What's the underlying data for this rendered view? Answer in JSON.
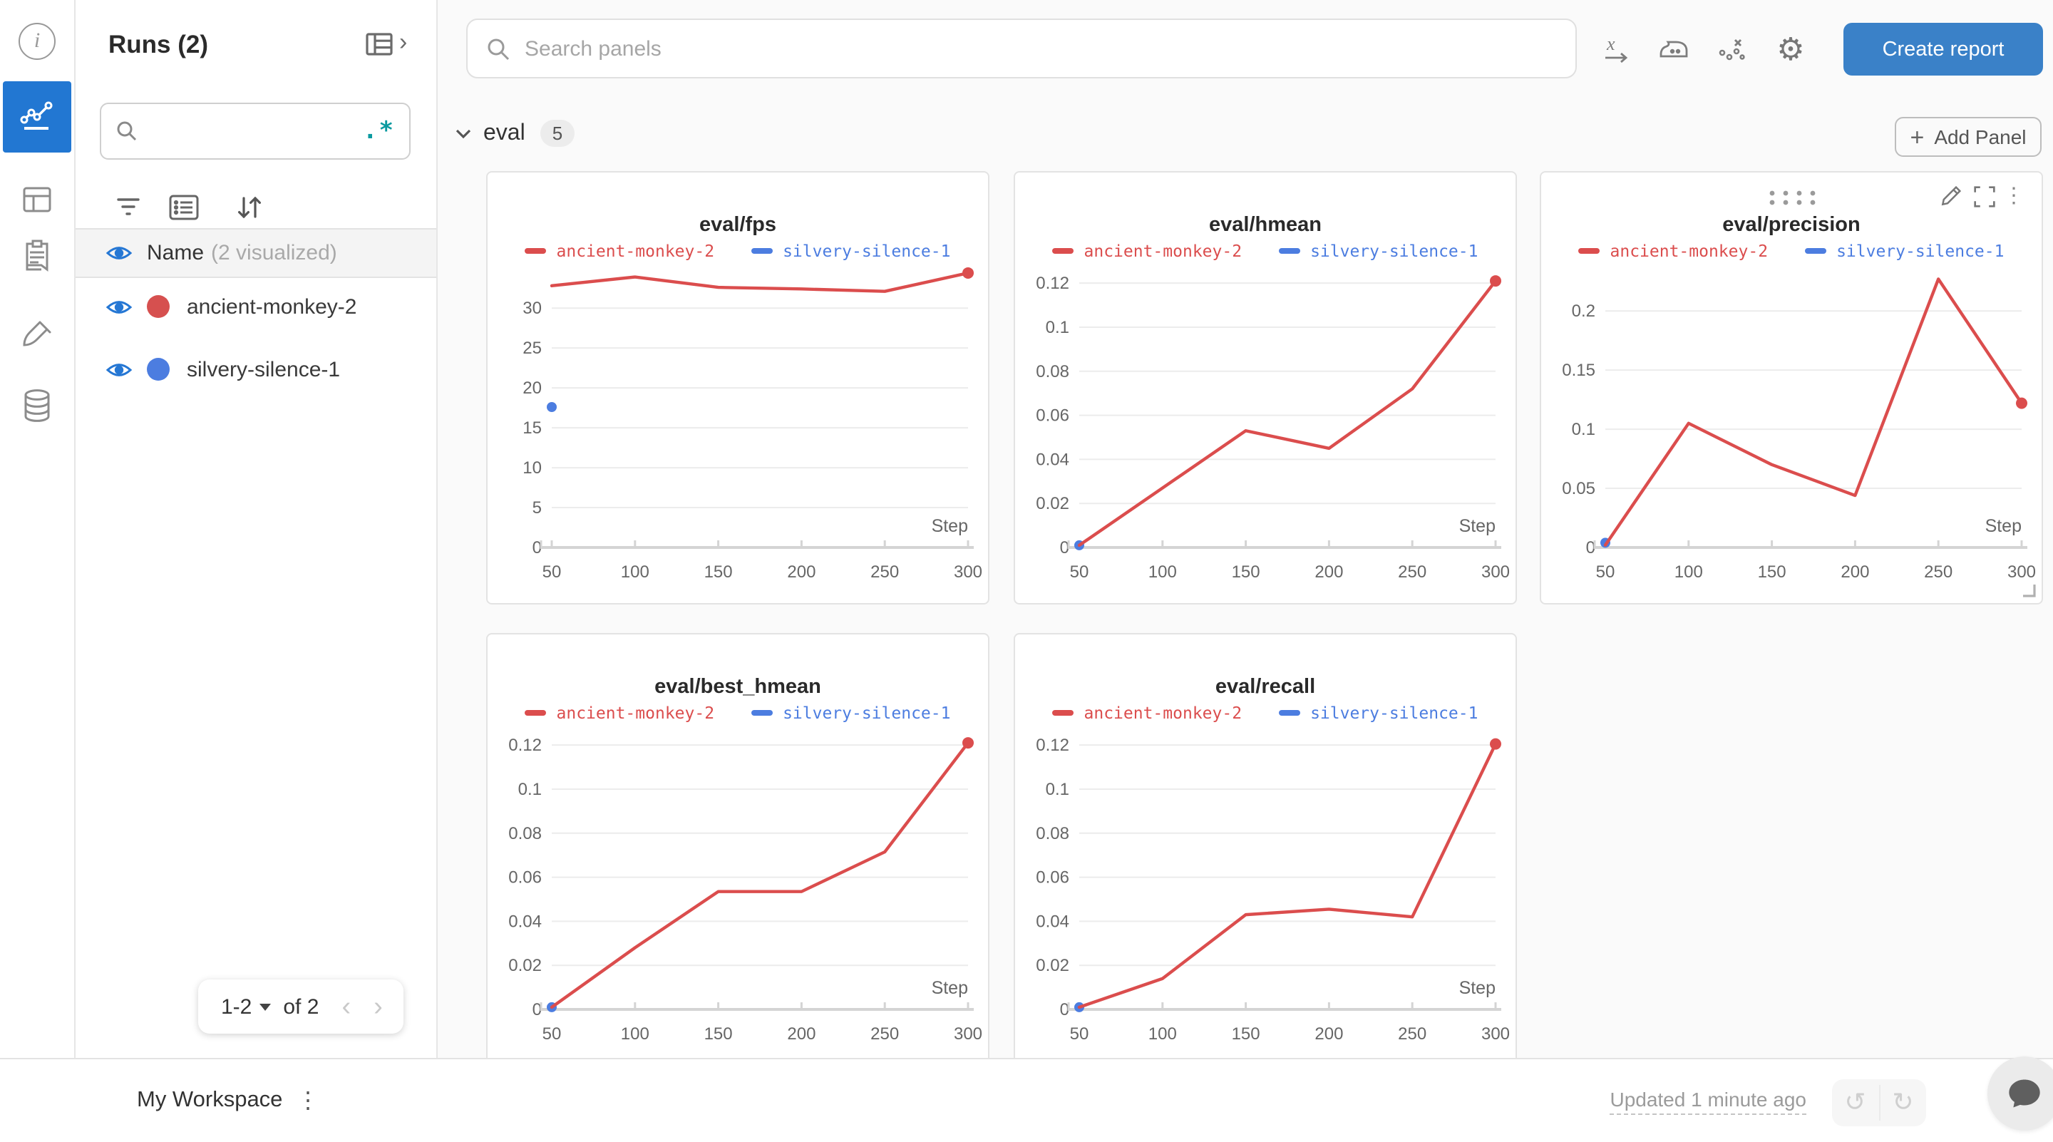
{
  "icons": {
    "gear": "⚙",
    "undo": "↺",
    "redo": "↻",
    "kebab": "⋮",
    "chevron_right": "›",
    "chevron_left": "‹",
    "chevron_right2": "›",
    "plus": "+"
  },
  "rail": {
    "items": [
      {
        "name": "info"
      },
      {
        "name": "workspace-charts",
        "selected": true
      },
      {
        "name": "panels-table"
      },
      {
        "name": "logs-clipboard"
      },
      {
        "name": "sweeps-brush"
      },
      {
        "name": "artifacts-database"
      }
    ]
  },
  "runs_panel": {
    "title": "Runs (2)",
    "search_value": "",
    "regex_icon": ".*",
    "header": {
      "label": "Name",
      "suffix": "(2 visualized)"
    },
    "runs": [
      {
        "name": "ancient-monkey-2",
        "color": "#d6504f"
      },
      {
        "name": "silvery-silence-1",
        "color": "#4c7de0"
      }
    ],
    "pagination": {
      "range": "1-2",
      "of": "of 2"
    }
  },
  "topbar": {
    "search_placeholder": "Search panels",
    "create_report": "Create report"
  },
  "section": {
    "label": "eval",
    "count": "5",
    "add_panel": "Add Panel"
  },
  "bottombar": {
    "workspace": "My Workspace",
    "updated": "Updated 1 minute ago"
  },
  "colors": {
    "accent_blue": "#3a81c8",
    "selected_tile_blue": "#2277d2",
    "eye_blue": "#2577d4",
    "run_red": "#d6504f",
    "run_blue": "#4c7de0",
    "series_red": "#db4d4d",
    "series_blue": "#4c7de0",
    "teal_regex": "#0b9aa0",
    "grid_line": "#ececec",
    "axis_line": "#d4d4d4",
    "tick_text": "#666666"
  },
  "chart_data": [
    {
      "type": "line",
      "title": "eval/fps",
      "xlabel": "Step",
      "x": [
        50,
        100,
        150,
        200,
        250,
        300
      ],
      "yticks": [
        0,
        5,
        10,
        15,
        20,
        25,
        30
      ],
      "ylim": [
        0,
        35.2
      ],
      "legend_position": "top",
      "grid": "horizontal",
      "series": [
        {
          "name": "ancient-monkey-2",
          "color": "#db4d4d",
          "points": [
            [
              50,
              32.8
            ],
            [
              100,
              33.9
            ],
            [
              150,
              32.6
            ],
            [
              200,
              32.4
            ],
            [
              250,
              32.1
            ],
            [
              300,
              34.4
            ]
          ]
        },
        {
          "name": "silvery-silence-1",
          "color": "#4c7de0",
          "points": [
            [
              50,
              17.6
            ]
          ]
        }
      ],
      "controls_visible": false
    },
    {
      "type": "line",
      "title": "eval/hmean",
      "xlabel": "Step",
      "x": [
        50,
        100,
        150,
        200,
        250,
        300
      ],
      "yticks": [
        0,
        0.02,
        0.04,
        0.06,
        0.08,
        0.1,
        0.12
      ],
      "ylim": [
        0,
        0.1275
      ],
      "legend_position": "top",
      "grid": "horizontal",
      "series": [
        {
          "name": "ancient-monkey-2",
          "color": "#db4d4d",
          "points": [
            [
              50,
              0.001
            ],
            [
              100,
              0.027
            ],
            [
              150,
              0.053
            ],
            [
              200,
              0.045
            ],
            [
              250,
              0.072
            ],
            [
              300,
              0.121
            ]
          ]
        },
        {
          "name": "silvery-silence-1",
          "color": "#4c7de0",
          "points": [
            [
              50,
              0.001
            ]
          ]
        }
      ],
      "controls_visible": false
    },
    {
      "type": "line",
      "title": "eval/precision",
      "xlabel": "Step",
      "x": [
        50,
        100,
        150,
        200,
        250,
        300
      ],
      "yticks": [
        0,
        0.05,
        0.1,
        0.15,
        0.2
      ],
      "ylim": [
        0,
        0.2375
      ],
      "legend_position": "top",
      "grid": "horizontal",
      "series": [
        {
          "name": "ancient-monkey-2",
          "color": "#db4d4d",
          "points": [
            [
              50,
              0.002
            ],
            [
              100,
              0.105
            ],
            [
              150,
              0.07
            ],
            [
              200,
              0.044
            ],
            [
              250,
              0.227
            ],
            [
              300,
              0.122
            ]
          ]
        },
        {
          "name": "silvery-silence-1",
          "color": "#4c7de0",
          "points": [
            [
              50,
              0.004
            ]
          ]
        }
      ],
      "controls_visible": true
    },
    {
      "type": "line",
      "title": "eval/best_hmean",
      "xlabel": "Step",
      "x": [
        50,
        100,
        150,
        200,
        250,
        300
      ],
      "yticks": [
        0,
        0.02,
        0.04,
        0.06,
        0.08,
        0.1,
        0.12
      ],
      "ylim": [
        0,
        0.1275
      ],
      "legend_position": "top",
      "grid": "horizontal",
      "series": [
        {
          "name": "ancient-monkey-2",
          "color": "#db4d4d",
          "points": [
            [
              50,
              0.001
            ],
            [
              100,
              0.028
            ],
            [
              150,
              0.0535
            ],
            [
              200,
              0.0535
            ],
            [
              250,
              0.0715
            ],
            [
              300,
              0.121
            ]
          ]
        },
        {
          "name": "silvery-silence-1",
          "color": "#4c7de0",
          "points": [
            [
              50,
              0.001
            ]
          ]
        }
      ],
      "controls_visible": false
    },
    {
      "type": "line",
      "title": "eval/recall",
      "xlabel": "Step",
      "x": [
        50,
        100,
        150,
        200,
        250,
        300
      ],
      "yticks": [
        0,
        0.02,
        0.04,
        0.06,
        0.08,
        0.1,
        0.12
      ],
      "ylim": [
        0,
        0.1275
      ],
      "legend_position": "top",
      "grid": "horizontal",
      "series": [
        {
          "name": "ancient-monkey-2",
          "color": "#db4d4d",
          "points": [
            [
              50,
              0.001
            ],
            [
              100,
              0.014
            ],
            [
              150,
              0.043
            ],
            [
              200,
              0.0455
            ],
            [
              250,
              0.042
            ],
            [
              300,
              0.1205
            ]
          ]
        },
        {
          "name": "silvery-silence-1",
          "color": "#4c7de0",
          "points": [
            [
              50,
              0.001
            ]
          ]
        }
      ],
      "controls_visible": false
    }
  ]
}
